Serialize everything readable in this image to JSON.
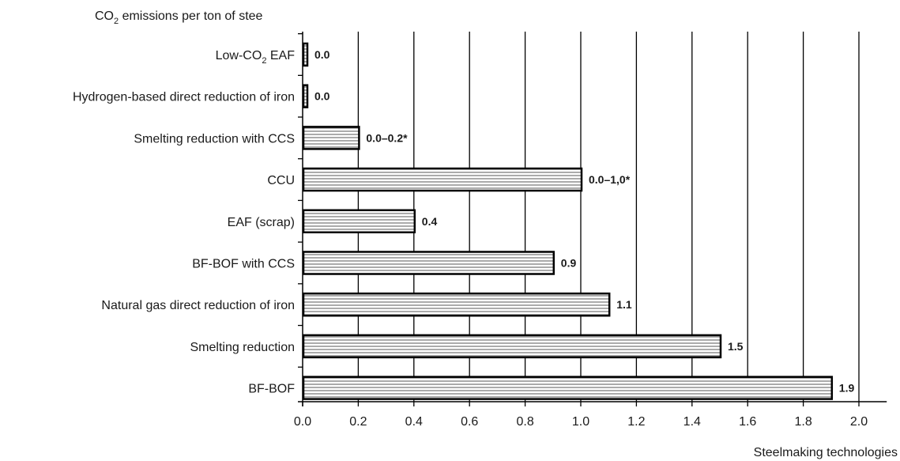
{
  "chart_data": {
    "type": "bar",
    "orientation": "horizontal",
    "title": "",
    "ylabel_prefix": "CO",
    "ylabel_sub": "2",
    "ylabel_suffix": " emissions per ton of stee",
    "xlabel": "Steelmaking technologies",
    "xlim": [
      0,
      2.1
    ],
    "xticks": [
      "0.0",
      "0.2",
      "0.4",
      "0.6",
      "0.8",
      "1.0",
      "1.2",
      "1.4",
      "1.6",
      "1.8",
      "2.0"
    ],
    "xtick_values": [
      0,
      0.2,
      0.4,
      0.6,
      0.8,
      1.0,
      1.2,
      1.4,
      1.6,
      1.8,
      2.0
    ],
    "grid": "vertical",
    "bar_fill": "horizontal-hatch",
    "categories": [
      {
        "label": "Low-CO",
        "sub": "2",
        "suffix": " EAF",
        "value": 0.0,
        "data_label": "0.0"
      },
      {
        "label": "Hydrogen-based direct reduction of iron",
        "value": 0.0,
        "data_label": "0.0"
      },
      {
        "label": "Smelting reduction with CCS",
        "value": 0.2,
        "data_label": "0.0–0.2*"
      },
      {
        "label": "CCU",
        "value": 1.0,
        "data_label": "0.0–1,0*"
      },
      {
        "label": "EAF (scrap)",
        "value": 0.4,
        "data_label": "0.4"
      },
      {
        "label": "BF-BOF with CCS",
        "value": 0.9,
        "data_label": "0.9"
      },
      {
        "label": "Natural gas direct reduction of iron",
        "value": 1.1,
        "data_label": "1.1"
      },
      {
        "label": "Smelting reduction",
        "value": 1.5,
        "data_label": "1.5"
      },
      {
        "label": "BF-BOF",
        "value": 1.9,
        "data_label": "1.9"
      }
    ]
  }
}
